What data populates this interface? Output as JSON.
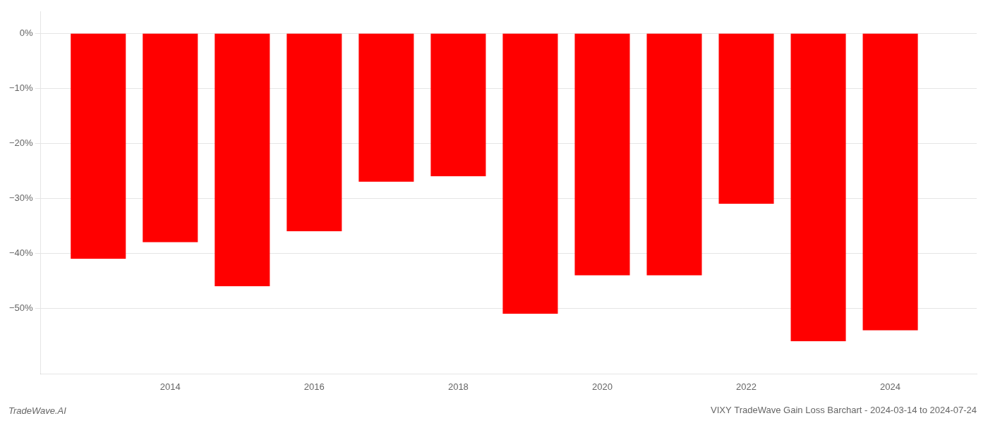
{
  "chart_data": {
    "type": "bar",
    "title": "VIXY TradeWave Gain Loss Barchart - 2024-03-14 to 2024-07-24",
    "annotations": [
      "TradeWave.AI"
    ],
    "x": [
      2013,
      2014,
      2015,
      2016,
      2017,
      2018,
      2019,
      2020,
      2021,
      2022,
      2023,
      2024
    ],
    "values": [
      -0.41,
      -0.38,
      -0.46,
      -0.36,
      -0.27,
      -0.26,
      -0.51,
      -0.44,
      -0.44,
      -0.31,
      -0.56,
      -0.54
    ],
    "color": "#ff0000",
    "xlim": [
      2012.2,
      2025.2
    ],
    "xticks": [
      2014,
      2016,
      2018,
      2020,
      2022,
      2024
    ],
    "ylim": [
      -0.62,
      0.04
    ],
    "yticks": [
      {
        "value": 0,
        "label": "0%"
      },
      {
        "value": -0.1,
        "label": "−10%"
      },
      {
        "value": -0.2,
        "label": "−20%"
      },
      {
        "value": -0.3,
        "label": "−30%"
      },
      {
        "value": -0.4,
        "label": "−40%"
      },
      {
        "value": -0.5,
        "label": "−50%"
      }
    ],
    "grid": true
  }
}
